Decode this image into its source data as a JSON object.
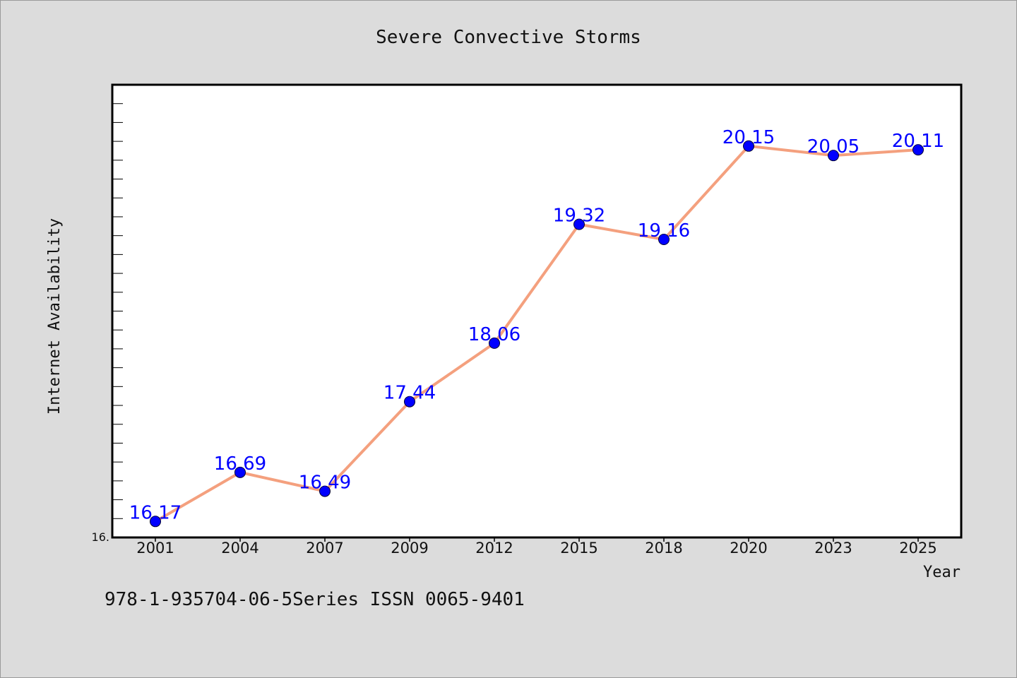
{
  "chart_data": {
    "type": "line",
    "title": "Severe Convective Storms",
    "xlabel": "Year",
    "ylabel": "Internet Availability",
    "categories": [
      "2001",
      "2004",
      "2007",
      "2009",
      "2012",
      "2015",
      "2018",
      "2020",
      "2023",
      "2025"
    ],
    "series": [
      {
        "values": [
          16.17,
          16.69,
          16.49,
          17.44,
          18.06,
          19.32,
          19.16,
          20.15,
          20.05,
          20.11
        ]
      }
    ],
    "data_labels": [
      "16.17",
      "16.69",
      "16.49",
      "17.44",
      "18.06",
      "19.32",
      "19.16",
      "20.15",
      "20.05",
      "20.11"
    ],
    "ylim": [
      16.0,
      20.8
    ],
    "y_min_label": "16.",
    "grid": false,
    "legend": "none",
    "colors": {
      "line": "#f4a07e",
      "marker": "#0000ff",
      "data_label": "#0000ff",
      "plot_background": "#ffffff",
      "page_background": "#dcdcdc"
    }
  },
  "footer": {
    "text": "978-1-935704-06-5Series ISSN 0065-9401"
  }
}
